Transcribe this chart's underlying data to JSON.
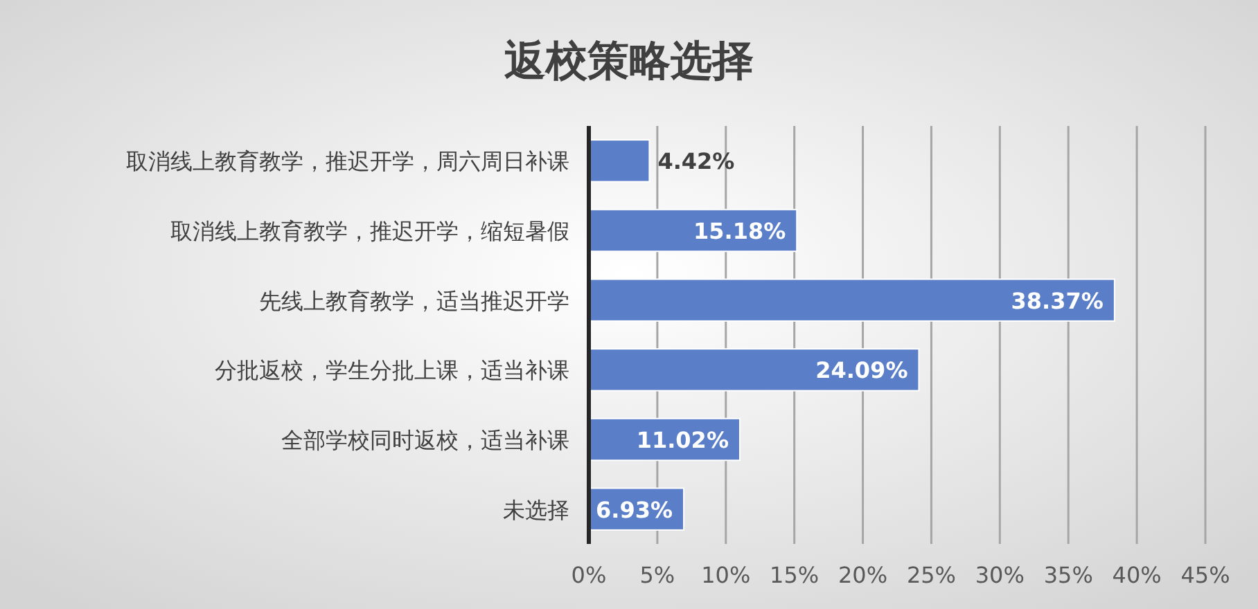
{
  "chart_data": {
    "type": "bar",
    "orientation": "horizontal",
    "title": "返校策略选择",
    "categories": [
      "取消线上教育教学，推迟开学，周六周日补课",
      "取消线上教育教学，推迟开学，缩短暑假",
      "先线上教育教学，适当推迟开学",
      "分批返校，学生分批上课，适当补课",
      "全部学校同时返校，适当补课",
      "未选择"
    ],
    "values": [
      4.42,
      15.18,
      38.37,
      24.09,
      11.02,
      6.93
    ],
    "color": "#5a7fc8",
    "xlim": [
      0,
      45
    ],
    "xticks": [
      {
        "value": 0,
        "label": "0%"
      },
      {
        "value": 5,
        "label": "5%"
      },
      {
        "value": 10,
        "label": "10%"
      },
      {
        "value": 15,
        "label": "15%"
      },
      {
        "value": 20,
        "label": "20%"
      },
      {
        "value": 25,
        "label": "25%"
      },
      {
        "value": 30,
        "label": "30%"
      },
      {
        "value": 35,
        "label": "35%"
      },
      {
        "value": 40,
        "label": "40%"
      },
      {
        "value": 45,
        "label": "45%"
      }
    ],
    "grid": "x",
    "value_labels": [
      "4.42%",
      "15.18%",
      "38.37%",
      "24.09%",
      "11.02%",
      "6.93%"
    ]
  }
}
